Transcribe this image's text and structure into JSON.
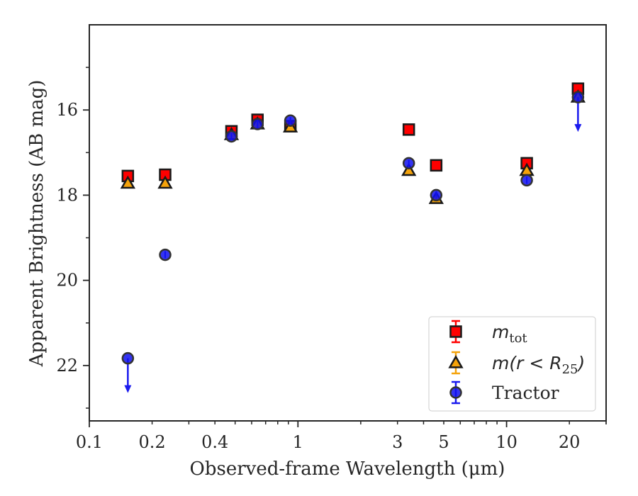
{
  "chart_data": {
    "type": "scatter",
    "xscale": "log",
    "yinverted": true,
    "xlim": [
      0.1,
      30
    ],
    "ylim": [
      23.3,
      14.0
    ],
    "xlabel": "Observed-frame Wavelength (μm)",
    "ylabel": "Apparent Brightness (AB mag)",
    "x_ticks": [
      {
        "value": 0.1,
        "label": "0.1"
      },
      {
        "value": 0.2,
        "label": "0.2"
      },
      {
        "value": 0.4,
        "label": "0.4"
      },
      {
        "value": 1,
        "label": "1"
      },
      {
        "value": 3,
        "label": "3"
      },
      {
        "value": 5,
        "label": "5"
      },
      {
        "value": 10,
        "label": "10"
      },
      {
        "value": 20,
        "label": "20"
      }
    ],
    "y_ticks": [
      {
        "value": 16,
        "label": "16"
      },
      {
        "value": 18,
        "label": "18"
      },
      {
        "value": 20,
        "label": "20"
      },
      {
        "value": 22,
        "label": "22"
      }
    ],
    "legend_position": "lower right",
    "series": [
      {
        "name": "m_tot",
        "marker": "square",
        "color": "#ff0000",
        "edge_color": "#1a1a1a",
        "errorbar_color": "#ff0000",
        "points": [
          {
            "x": 0.153,
            "y": 17.55
          },
          {
            "x": 0.231,
            "y": 17.52
          },
          {
            "x": 0.48,
            "y": 16.5
          },
          {
            "x": 0.64,
            "y": 16.23
          },
          {
            "x": 0.92,
            "y": 16.38
          },
          {
            "x": 3.4,
            "y": 16.46
          },
          {
            "x": 4.6,
            "y": 17.3
          },
          {
            "x": 12.5,
            "y": 17.25
          },
          {
            "x": 22.0,
            "y": 15.5
          }
        ]
      },
      {
        "name": "m(r<R25)",
        "marker": "triangle",
        "color": "#f5a30a",
        "edge_color": "#1a1a1a",
        "errorbar_color": "#f5a30a",
        "points": [
          {
            "x": 0.153,
            "y": 17.72
          },
          {
            "x": 0.231,
            "y": 17.72
          },
          {
            "x": 0.48,
            "y": 16.58
          },
          {
            "x": 0.64,
            "y": 16.33
          },
          {
            "x": 0.92,
            "y": 16.4
          },
          {
            "x": 3.4,
            "y": 17.42
          },
          {
            "x": 4.6,
            "y": 18.08
          },
          {
            "x": 12.5,
            "y": 17.42
          },
          {
            "x": 22.0,
            "y": 15.7
          }
        ]
      },
      {
        "name": "Tractor",
        "marker": "circle",
        "color": "#1010ee",
        "edge_color": "#333333",
        "errorbar_color": "#1a1aee",
        "points": [
          {
            "x": 0.153,
            "y": 21.83,
            "upper_limit": true
          },
          {
            "x": 0.231,
            "y": 19.4
          },
          {
            "x": 0.48,
            "y": 16.62
          },
          {
            "x": 0.64,
            "y": 16.33
          },
          {
            "x": 0.92,
            "y": 16.25
          },
          {
            "x": 3.4,
            "y": 17.25
          },
          {
            "x": 4.6,
            "y": 18.0
          },
          {
            "x": 12.5,
            "y": 17.65
          },
          {
            "x": 22.0,
            "y": 15.7,
            "upper_limit": true
          }
        ]
      }
    ],
    "legend": [
      {
        "series": 0,
        "label_base": "m",
        "label_sub": "tot"
      },
      {
        "series": 1,
        "label_pre": "m(r < R",
        "label_sub": "25",
        "label_post": ")"
      },
      {
        "series": 2,
        "label_plain": "Tractor"
      }
    ]
  }
}
